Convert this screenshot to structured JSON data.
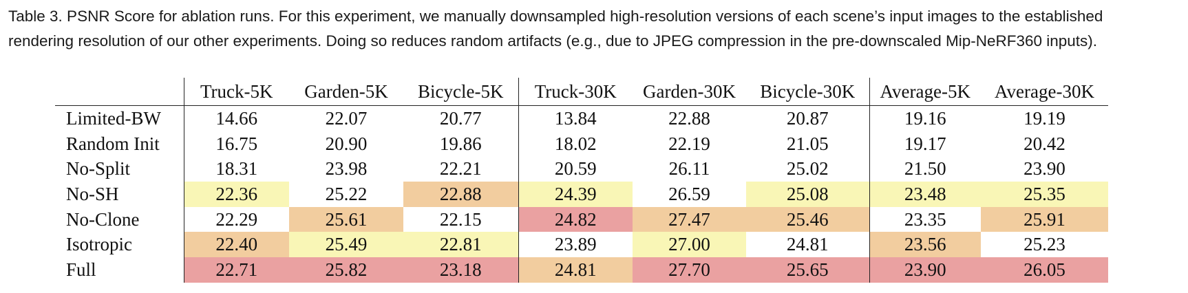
{
  "caption": {
    "line1": "Table 3.  PSNR Score for ablation runs. For this experiment, we manually downsampled high-resolution versions of each scene’s input images to the established",
    "line2": "rendering resolution of our other experiments. Doing so reduces random artifacts (e.g., due to JPEG compression in the pre-downscaled Mip-NeRF360 inputs)."
  },
  "table": {
    "columns": [
      "Truck-5K",
      "Garden-5K",
      "Bicycle-5K",
      "Truck-30K",
      "Garden-30K",
      "Bicycle-30K",
      "Average-5K",
      "Average-30K"
    ],
    "rows": [
      {
        "label": "Limited-BW",
        "values": [
          "14.66",
          "22.07",
          "20.77",
          "13.84",
          "22.88",
          "20.87",
          "19.16",
          "19.19"
        ],
        "highlight": [
          0,
          0,
          0,
          0,
          0,
          0,
          0,
          0
        ]
      },
      {
        "label": "Random Init",
        "values": [
          "16.75",
          "20.90",
          "19.86",
          "18.02",
          "22.19",
          "21.05",
          "19.17",
          "20.42"
        ],
        "highlight": [
          0,
          0,
          0,
          0,
          0,
          0,
          0,
          0
        ]
      },
      {
        "label": "No-Split",
        "values": [
          "18.31",
          "23.98",
          "22.21",
          "20.59",
          "26.11",
          "25.02",
          "21.50",
          "23.90"
        ],
        "highlight": [
          0,
          0,
          0,
          0,
          0,
          0,
          0,
          0
        ]
      },
      {
        "label": "No-SH",
        "values": [
          "22.36",
          "25.22",
          "22.88",
          "24.39",
          "26.59",
          "25.08",
          "23.48",
          "25.35"
        ],
        "highlight": [
          1,
          0,
          2,
          1,
          0,
          1,
          1,
          1
        ]
      },
      {
        "label": "No-Clone",
        "values": [
          "22.29",
          "25.61",
          "22.15",
          "24.82",
          "27.47",
          "25.46",
          "23.35",
          "25.91"
        ],
        "highlight": [
          0,
          2,
          0,
          3,
          2,
          2,
          0,
          2
        ]
      },
      {
        "label": "Isotropic",
        "values": [
          "22.40",
          "25.49",
          "22.81",
          "23.89",
          "27.00",
          "24.81",
          "23.56",
          "25.23"
        ],
        "highlight": [
          2,
          1,
          1,
          0,
          1,
          0,
          2,
          0
        ]
      },
      {
        "label": "Full",
        "values": [
          "22.71",
          "25.82",
          "23.18",
          "24.81",
          "27.70",
          "25.65",
          "23.90",
          "26.05"
        ],
        "highlight": [
          3,
          3,
          3,
          2,
          3,
          3,
          3,
          3
        ]
      }
    ],
    "highlight_colors": {
      "1": "#f9f6b6",
      "2": "#f2cd9f",
      "3": "#eaa1a1"
    }
  }
}
